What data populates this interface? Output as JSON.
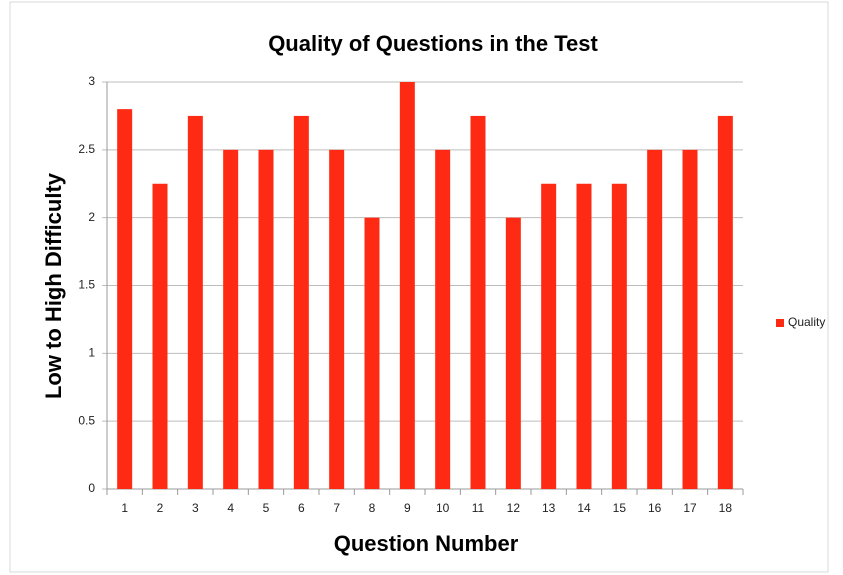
{
  "chart_data": {
    "type": "bar",
    "title": "Quality of Questions in the Test",
    "x_label": "Question Number",
    "y_label": "Low to High Difficulty",
    "categories": [
      "1",
      "2",
      "3",
      "4",
      "5",
      "6",
      "7",
      "8",
      "9",
      "10",
      "11",
      "12",
      "13",
      "14",
      "15",
      "16",
      "17",
      "18"
    ],
    "series": [
      {
        "name": "Quality",
        "color": "#ff2a14",
        "values": [
          2.8,
          2.25,
          2.75,
          2.5,
          2.5,
          2.75,
          2.5,
          2.0,
          3.0,
          2.5,
          2.75,
          2.0,
          2.25,
          2.25,
          2.25,
          2.5,
          2.5,
          2.75
        ]
      }
    ],
    "ylim": [
      0,
      3
    ],
    "yticks": [
      0,
      0.5,
      1,
      1.5,
      2,
      2.5,
      3
    ],
    "grid": true,
    "legend": "right"
  }
}
